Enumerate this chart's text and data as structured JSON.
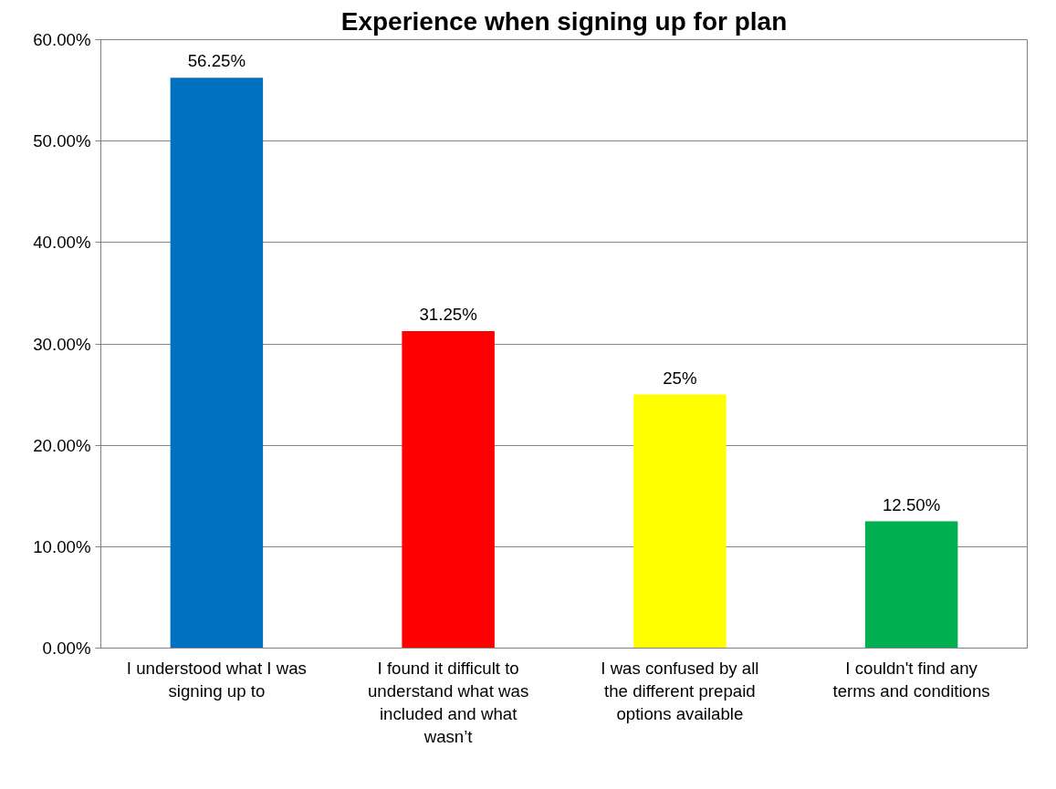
{
  "chart_data": {
    "type": "bar",
    "title": "Experience when signing up for plan",
    "categories": [
      "I understood what I was signing up to",
      "I found it difficult to understand what was included and what wasn’t",
      "I was confused by all the different prepaid options available",
      "I couldn't find any terms and conditions"
    ],
    "values": [
      56.25,
      31.25,
      25,
      12.5
    ],
    "colors": [
      "#0070c0",
      "#ff0000",
      "#ffff00",
      "#00b050"
    ],
    "value_labels": [
      "56.25%",
      "31.25%",
      "25%",
      "12.50%"
    ],
    "ylim": [
      0,
      60
    ],
    "yticks": [
      {
        "value": 0,
        "label": "0.00%"
      },
      {
        "value": 10,
        "label": "10.00%"
      },
      {
        "value": 20,
        "label": "20.00%"
      },
      {
        "value": 30,
        "label": "30.00%"
      },
      {
        "value": 40,
        "label": "40.00%"
      },
      {
        "value": 50,
        "label": "50.00%"
      },
      {
        "value": 60,
        "label": "60.00%"
      }
    ],
    "grid": "y"
  }
}
